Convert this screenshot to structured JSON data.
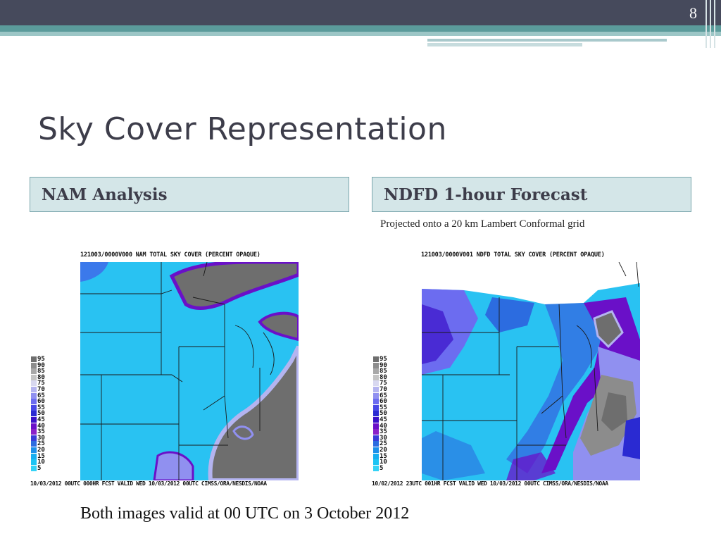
{
  "slide": {
    "page_number": "8",
    "title": "Sky Cover Representation",
    "footer": "Both images valid at 00 UTC on 3 October 2012",
    "colors": {
      "header_bar": "#464a5c",
      "accent_teal": "#5b9b9b",
      "box_fill": "#d4e6e8",
      "box_border": "#7aa6ad"
    }
  },
  "left_panel": {
    "heading": "NAM Analysis",
    "map_title": "121003/0000V000 NAM  TOTAL SKY COVER (PERCENT OPAQUE)",
    "map_caption": "10/03/2012 00UTC 000HR FCST VALID WED 10/03/2012 00UTC   CIMSS/ORA/NESDIS/NOAA"
  },
  "right_panel": {
    "heading": "NDFD 1-hour Forecast",
    "note": "Projected onto a 20 km Lambert Conformal grid",
    "map_title": "121003/0000V001 NDFD  TOTAL SKY COVER (PERCENT OPAQUE)",
    "map_caption": "10/02/2012 23UTC 001HR FCST VALID WED 10/03/2012 00UTC   CIMSS/ORA/NESDIS/NOAA"
  },
  "legend": {
    "labels": [
      "95",
      "90",
      "85",
      "80",
      "75",
      "70",
      "65",
      "60",
      "55",
      "50",
      "45",
      "40",
      "35",
      "30",
      "25",
      "20",
      "15",
      "10",
      "5"
    ],
    "colors": [
      "#6e6e6e",
      "#8c8c8c",
      "#a8a8a8",
      "#c4c4c4",
      "#d8d8f0",
      "#b4b4f0",
      "#9090f0",
      "#6c6cf0",
      "#4848e6",
      "#2a2ad2",
      "#3a10c8",
      "#6a10c8",
      "#8a20c8",
      "#3a3ad8",
      "#2c6ce0",
      "#1c90ea",
      "#18aef0",
      "#1cc4f4",
      "#34d2f6"
    ]
  }
}
